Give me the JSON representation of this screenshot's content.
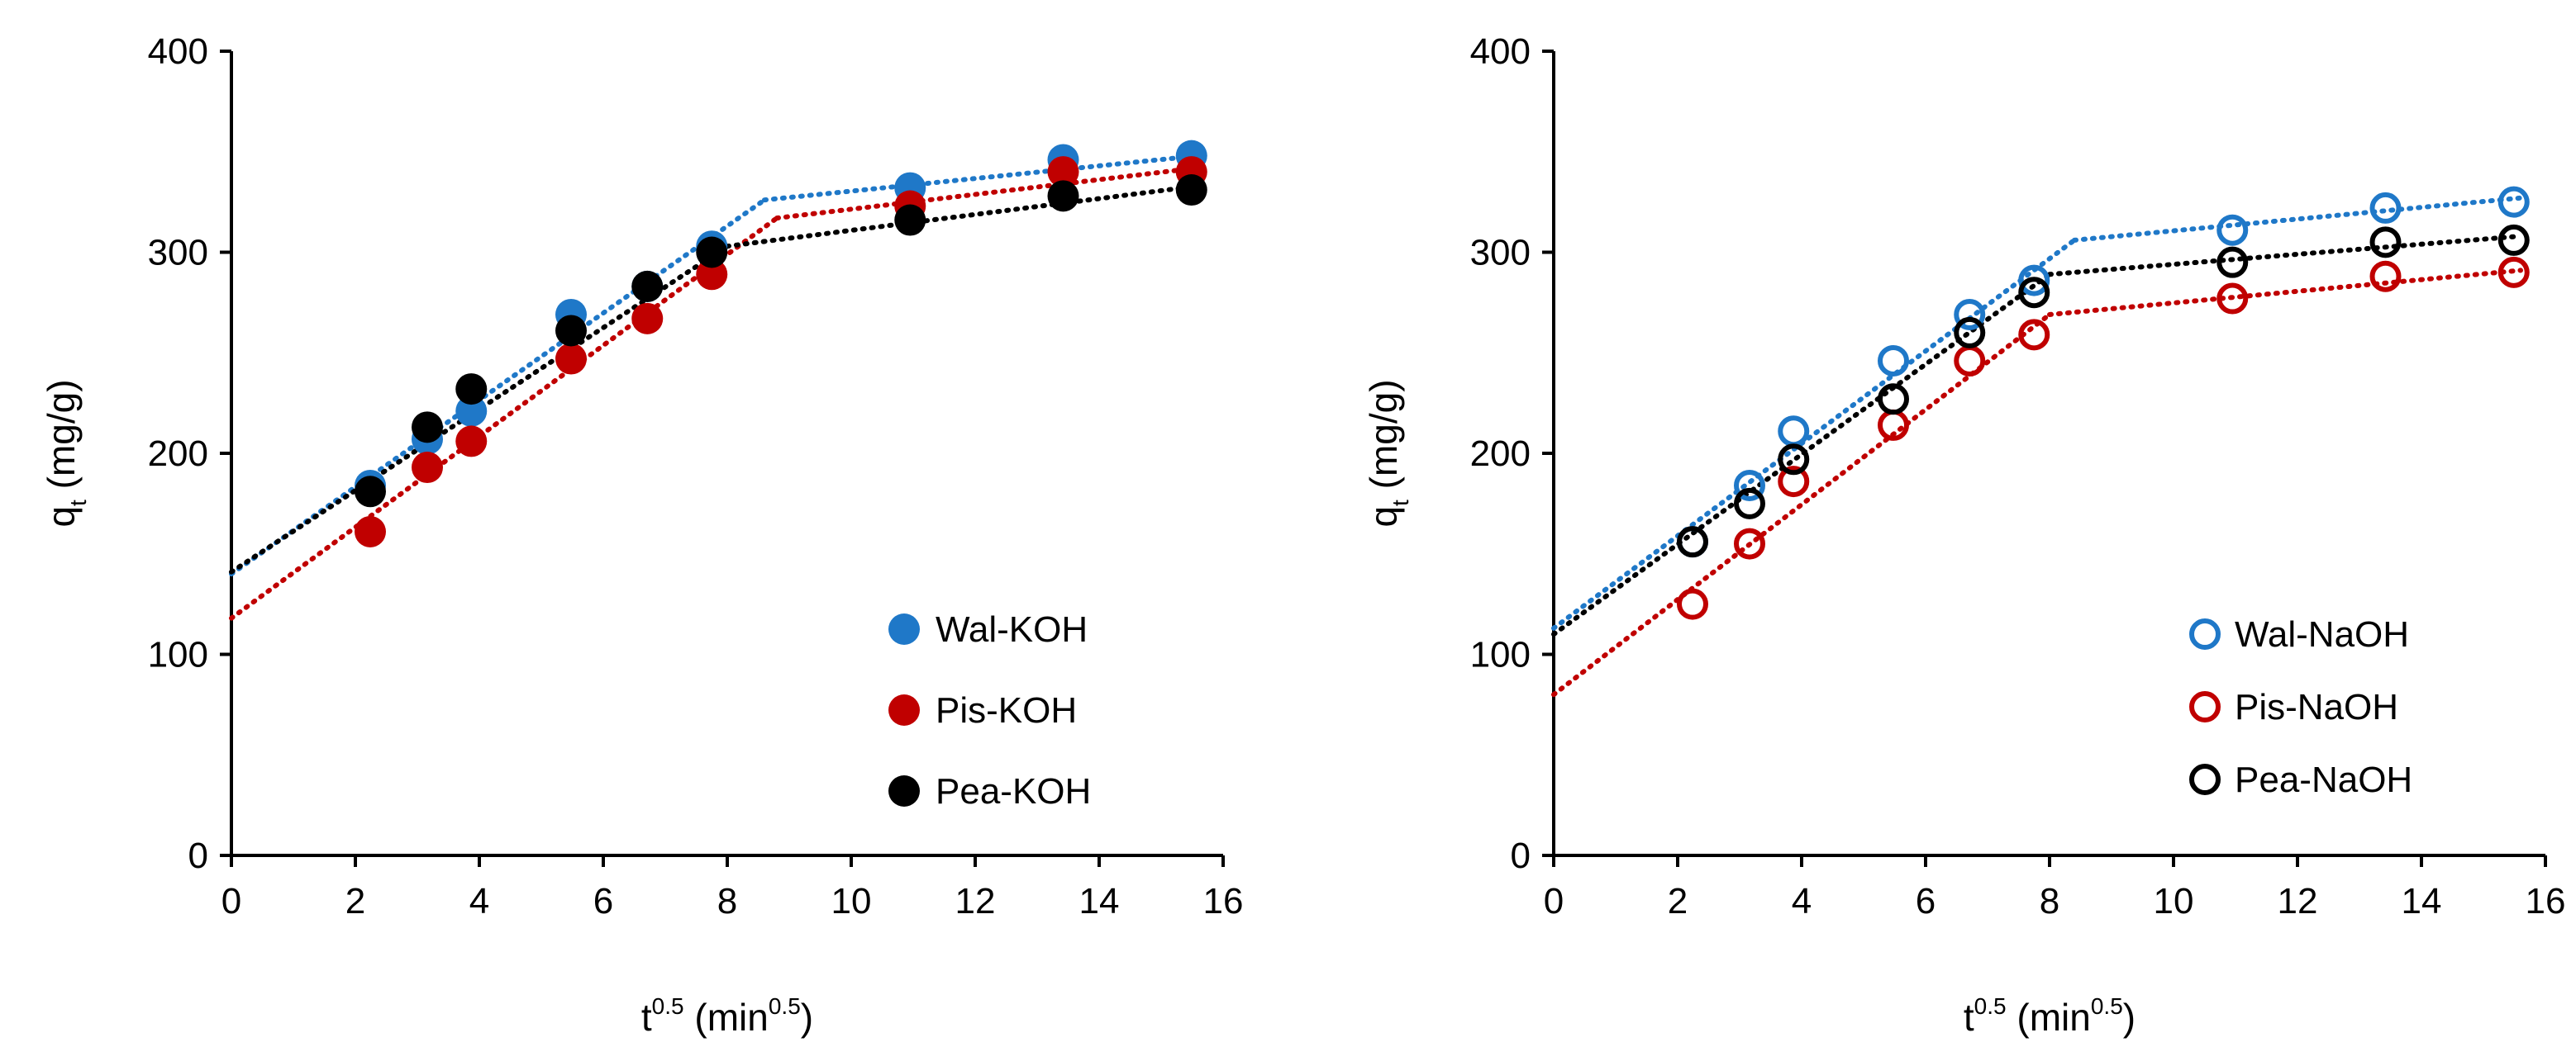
{
  "chart_data": [
    {
      "type": "scatter",
      "panel": "left",
      "title": "",
      "xlabel": {
        "base": "t",
        "base_sup": "0.5",
        "unit_open": " (min",
        "unit_sup": "0.5",
        "unit_close": ")"
      },
      "ylabel": {
        "base": "q",
        "sub": "t",
        "unit": " (mg/g)"
      },
      "xlim": [
        0,
        16
      ],
      "ylim": [
        0,
        400
      ],
      "xticks": [
        "0",
        "2",
        "4",
        "6",
        "8",
        "10",
        "12",
        "14",
        "16"
      ],
      "yticks": [
        "0",
        "100",
        "200",
        "300",
        "400"
      ],
      "grid": false,
      "legend_position": "bottom-right",
      "marker": "filled-circle",
      "series": [
        {
          "name": "Wal-KOH",
          "color": "#1f78c8",
          "x": [
            2.24,
            3.16,
            3.87,
            5.48,
            6.71,
            7.75,
            10.95,
            13.42,
            15.49
          ],
          "y": [
            184,
            207,
            221,
            269,
            283,
            303,
            332,
            346,
            348
          ],
          "fit_lines": [
            {
              "x": [
                0,
                8.6
              ],
              "y": [
                140,
                326
              ]
            },
            {
              "x": [
                8.6,
                15.6
              ],
              "y": [
                326,
                348
              ]
            }
          ]
        },
        {
          "name": "Pis-KOH",
          "color": "#c00000",
          "x": [
            2.24,
            3.16,
            3.87,
            5.48,
            6.71,
            7.75,
            10.95,
            13.42,
            15.49
          ],
          "y": [
            161,
            193,
            206,
            247,
            267,
            289,
            323,
            340,
            340
          ],
          "fit_lines": [
            {
              "x": [
                0,
                8.8
              ],
              "y": [
                118,
                317
              ]
            },
            {
              "x": [
                8.8,
                15.6
              ],
              "y": [
                317,
                342
              ]
            }
          ]
        },
        {
          "name": "Pea-KOH",
          "color": "#000000",
          "x": [
            2.24,
            3.16,
            3.87,
            5.48,
            6.71,
            7.75,
            10.95,
            13.42,
            15.49
          ],
          "y": [
            181,
            213,
            232,
            261,
            283,
            300,
            316,
            328,
            331
          ],
          "fit_lines": [
            {
              "x": [
                0,
                8.0
              ],
              "y": [
                141,
                303
              ]
            },
            {
              "x": [
                8.0,
                15.6
              ],
              "y": [
                303,
                333
              ]
            }
          ]
        }
      ]
    },
    {
      "type": "scatter",
      "panel": "right",
      "title": "",
      "xlabel": {
        "base": "t",
        "base_sup": "0.5",
        "unit_open": " (min",
        "unit_sup": "0.5",
        "unit_close": ")"
      },
      "ylabel": {
        "base": "q",
        "sub": "t",
        "unit": " (mg/g)"
      },
      "xlim": [
        0,
        16
      ],
      "ylim": [
        0,
        400
      ],
      "xticks": [
        "0",
        "2",
        "4",
        "6",
        "8",
        "10",
        "12",
        "14",
        "16"
      ],
      "yticks": [
        "0",
        "100",
        "200",
        "300",
        "400"
      ],
      "grid": false,
      "legend_position": "bottom-right",
      "marker": "open-circle",
      "series": [
        {
          "name": "Wal-NaOH",
          "color": "#1f78c8",
          "x": [
            2.24,
            3.16,
            3.87,
            5.48,
            6.71,
            7.75,
            10.95,
            13.42,
            15.49
          ],
          "y": [
            156,
            184,
            211,
            246,
            269,
            286,
            311,
            322,
            325
          ],
          "fit_lines": [
            {
              "x": [
                0,
                8.4
              ],
              "y": [
                113,
                306
              ]
            },
            {
              "x": [
                8.4,
                15.6
              ],
              "y": [
                306,
                327
              ]
            }
          ]
        },
        {
          "name": "Pis-NaOH",
          "color": "#c00000",
          "x": [
            2.24,
            3.16,
            3.87,
            5.48,
            6.71,
            7.75,
            10.95,
            13.42,
            15.49
          ],
          "y": [
            125,
            155,
            186,
            214,
            246,
            259,
            277,
            288,
            290
          ],
          "fit_lines": [
            {
              "x": [
                0,
                8.0
              ],
              "y": [
                80,
                269
              ]
            },
            {
              "x": [
                8.0,
                15.6
              ],
              "y": [
                269,
                291
              ]
            }
          ]
        },
        {
          "name": "Pea-NaOH",
          "color": "#000000",
          "x": [
            2.24,
            3.16,
            3.87,
            5.48,
            6.71,
            7.75,
            10.95,
            13.42,
            15.49
          ],
          "y": [
            156,
            175,
            197,
            227,
            260,
            280,
            295,
            305,
            306
          ],
          "fit_lines": [
            {
              "x": [
                0,
                8.0
              ],
              "y": [
                110,
                289
              ]
            },
            {
              "x": [
                8.0,
                15.6
              ],
              "y": [
                289,
                308
              ]
            }
          ]
        }
      ]
    }
  ]
}
